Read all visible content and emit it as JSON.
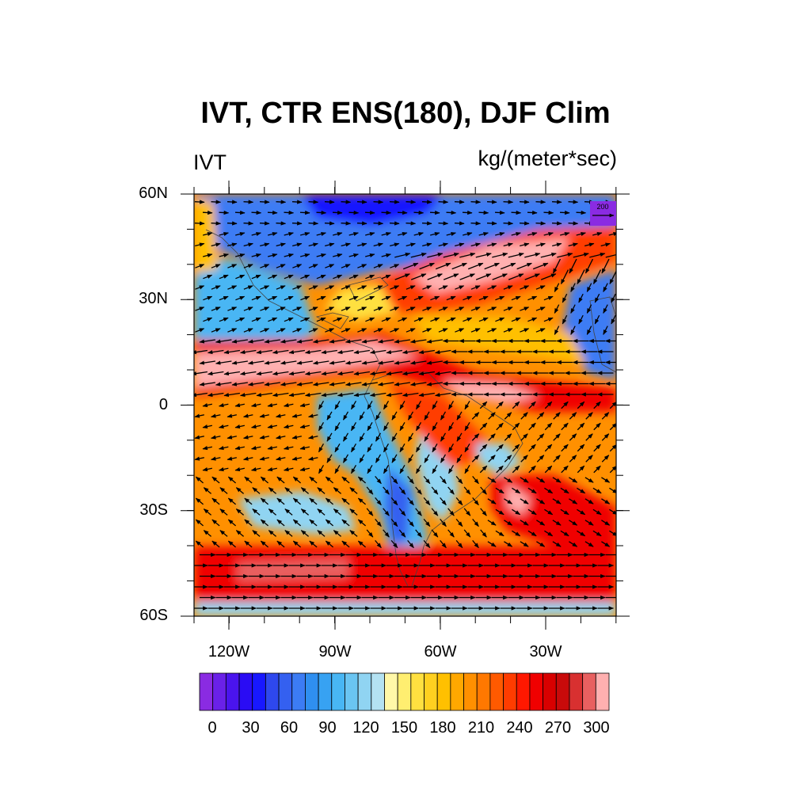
{
  "title": "IVT, CTR ENS(180), DJF Clim",
  "left_string": "IVT",
  "right_string": "kg/(meter*sec)",
  "ref_vector_label": "200",
  "lat_labels": [
    "60N",
    "30N",
    "0",
    "30S",
    "60S"
  ],
  "lon_labels": [
    "120W",
    "90W",
    "60W",
    "30W"
  ],
  "colorbar": {
    "labels": [
      "0",
      "30",
      "60",
      "90",
      "120",
      "150",
      "180",
      "210",
      "240",
      "270",
      "300"
    ],
    "colors": [
      "#8a2be2",
      "#6a21e8",
      "#4a14ee",
      "#2a0cf4",
      "#1818ff",
      "#2e48ee",
      "#3460f0",
      "#3c7cf4",
      "#2f8ff0",
      "#37a2f2",
      "#48b6f4",
      "#6ac5f2",
      "#90d4f2",
      "#b4e2f2",
      "#fff8a8",
      "#ffee70",
      "#ffe040",
      "#ffd020",
      "#ffc000",
      "#ffa800",
      "#ff9000",
      "#ff7800",
      "#ff5a00",
      "#ff3c00",
      "#ff1800",
      "#f00000",
      "#d80000",
      "#c80a0a",
      "#d83030",
      "#e86060",
      "#ffb0b0"
    ]
  }
}
